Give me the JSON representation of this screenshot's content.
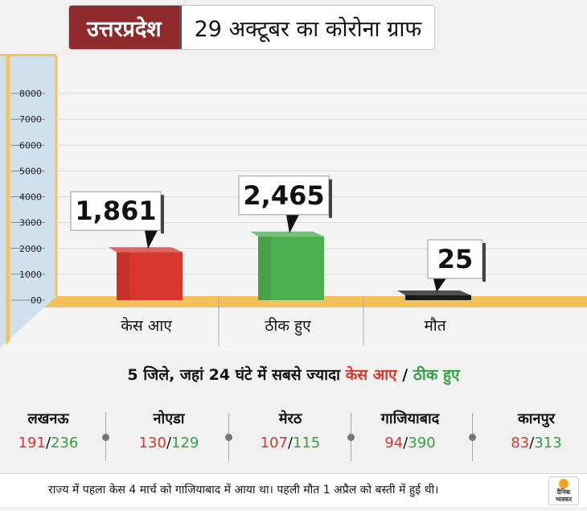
{
  "header": {
    "state": "उत्तरप्रदेश",
    "title": "29 अक्टूबर का कोरोना ग्राफ"
  },
  "chart_data": {
    "type": "bar",
    "categories": [
      "केस आए",
      "ठीक हुए",
      "मौत"
    ],
    "values": [
      1861,
      2465,
      25
    ],
    "value_labels": [
      "1,861",
      "2,465",
      "25"
    ],
    "colors": [
      "#d7372e",
      "#4caf50",
      "#1a1a1a"
    ],
    "yticks": [
      "00",
      "1000",
      "2000",
      "3000",
      "4000",
      "5000",
      "6000",
      "7000",
      "8000"
    ],
    "ylim": [
      0,
      8000
    ],
    "grid": true
  },
  "subtitle": {
    "prefix": "5 जिले, जहां 24 घंटे में सबसे ज्यादा",
    "cases": "केस आए",
    "slash": " / ",
    "recovered": "ठीक हुए"
  },
  "districts": [
    {
      "name": "लखनऊ",
      "cases": "191",
      "recovered": "236"
    },
    {
      "name": "नोएडा",
      "cases": "130",
      "recovered": "129"
    },
    {
      "name": "मेरठ",
      "cases": "107",
      "recovered": "115"
    },
    {
      "name": "गाजियाबाद",
      "cases": "94",
      "recovered": "390"
    },
    {
      "name": "कानपुर",
      "cases": "83",
      "recovered": "313"
    }
  ],
  "district_sep": "/",
  "footer": {
    "note": "राज्य में पहला केस 4 मार्च को गाजियाबाद में आया था। पहली मौत 1 अप्रैल को बस्ती में हुई थी।",
    "logo_line1": "दैनिक",
    "logo_line2": "भास्कर"
  },
  "colors": {
    "header_bg": "#8e2a2c",
    "wall": "#cfe0ee",
    "floor": "#f5c15c",
    "floor_edge": "#f9dc9a"
  }
}
